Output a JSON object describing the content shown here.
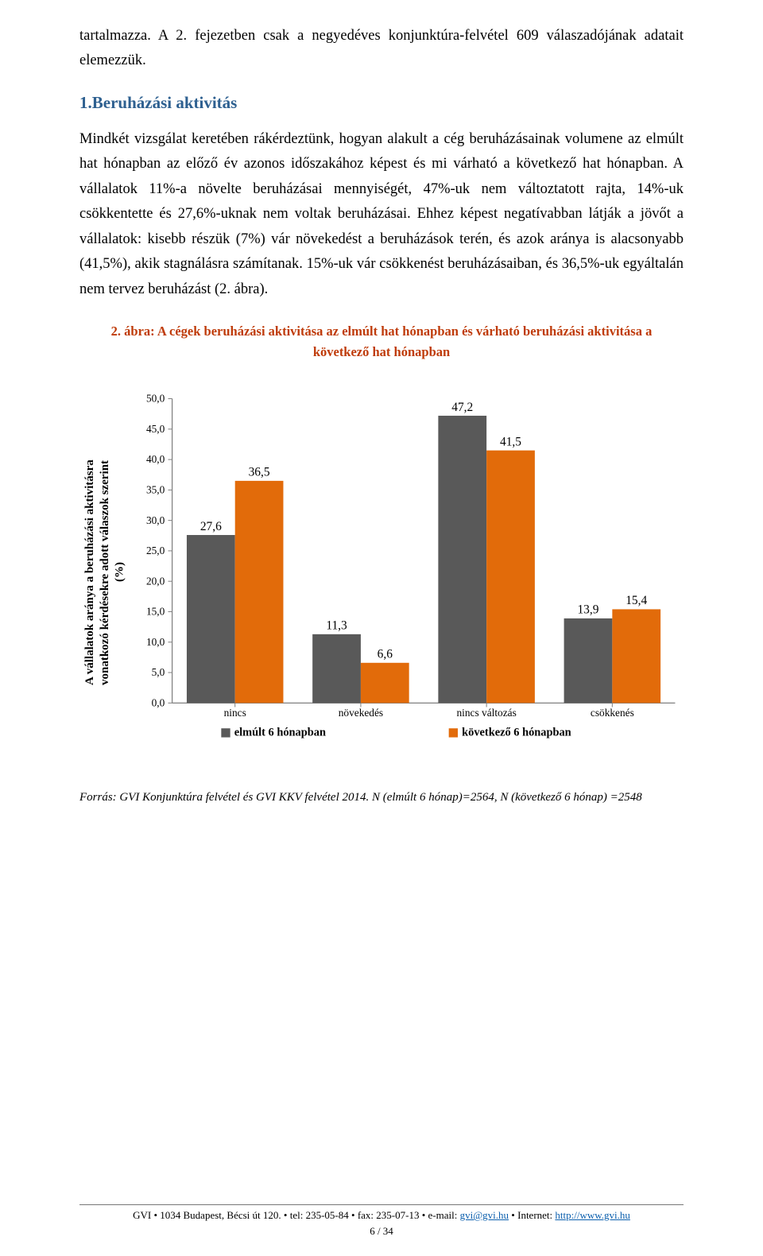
{
  "intro_para": "tartalmazza. A 2. fejezetben csak a negyedéves konjunktúra-felvétel 609 válaszadójának adatait elemezzük.",
  "section1": {
    "heading": "1.Beruházási aktivitás",
    "body": "Mindkét vizsgálat keretében rákérdeztünk, hogyan alakult a cég beruházásainak volumene az elmúlt hat hónapban az előző év azonos időszakához képest és mi várható a következő hat hónapban. A vállalatok 11%-a növelte beruházásai mennyiségét, 47%-uk nem változtatott rajta, 14%-uk csökkentette és 27,6%-uknak nem voltak beruházásai. Ehhez képest negatívabban látják a jövőt a vállalatok: kisebb részük (7%) vár növekedést a beruházások terén, és azok aránya is alacsonyabb (41,5%), akik stagnálásra számítanak. 15%-uk vár csökkenést beruházásaiban, és 36,5%-uk egyáltalán nem tervez beruházást (2. ábra)."
  },
  "figure2": {
    "caption": "2. ábra: A cégek beruházási aktivitása az elmúlt hat hónapban és várható beruházási aktivitása a következő hat hónapban",
    "y_axis_label": "A vállalatok aránya a beruházási aktivitásra vonatkozó kérdésekre adott válaszok szerint (%)",
    "type": "bar",
    "categories": [
      "nincs",
      "növekedés",
      "nincs változás",
      "csökkenés"
    ],
    "series": [
      {
        "name": "elmúlt 6 hónapban",
        "color": "#595959",
        "values": [
          27.6,
          11.3,
          47.2,
          13.9
        ]
      },
      {
        "name": "következő 6 hónapban",
        "color": "#e26b0a",
        "values": [
          36.5,
          6.6,
          41.5,
          15.4
        ]
      }
    ],
    "data_labels": [
      [
        "27,6",
        "36,5"
      ],
      [
        "11,3",
        "6,6"
      ],
      [
        "47,2",
        "41,5"
      ],
      [
        "13,9",
        "15,4"
      ]
    ],
    "yticks": [
      0.0,
      5.0,
      10.0,
      15.0,
      20.0,
      25.0,
      30.0,
      35.0,
      40.0,
      45.0,
      50.0
    ],
    "ytick_labels": [
      "0,0",
      "5,0",
      "10,0",
      "15,0",
      "20,0",
      "25,0",
      "30,0",
      "35,0",
      "40,0",
      "45,0",
      "50,0"
    ],
    "ylim": [
      0,
      50
    ],
    "bar_width": 0.48,
    "label_fontsize": 14,
    "tick_fontsize": 13,
    "datalabel_fontsize": 15,
    "axis_color": "#808080",
    "grid": false,
    "background_color": "#ffffff"
  },
  "source_note": "Forrás: GVI Konjunktúra felvétel és GVI KKV felvétel 2014. N (elmúlt 6 hónap)=2564, N (következő 6 hónap) =2548",
  "footer": {
    "org": "GVI",
    "sep": " • ",
    "address": "1034 Budapest, Bécsi út 120.",
    "tel_label": "tel:",
    "tel": "235-05-84",
    "fax_label": "fax:",
    "fax": "235-07-13",
    "email_label": "e-mail:",
    "email": "gvi@gvi.hu",
    "internet_label": "Internet:",
    "internet": "http://www.gvi.hu",
    "page": "6 / 34"
  }
}
